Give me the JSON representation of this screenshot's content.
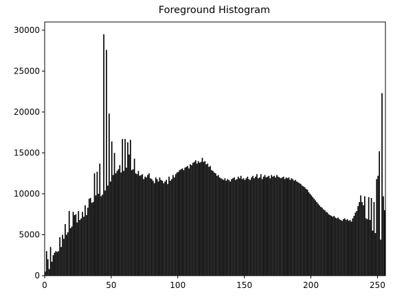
{
  "chart_data": {
    "type": "histogram",
    "title": "Foreground Histogram",
    "color": "#000000",
    "bins": [
      0,
      1,
      2,
      3,
      4,
      5,
      6,
      7,
      8,
      9,
      10,
      11,
      12,
      13,
      14,
      15,
      16,
      17,
      18,
      19,
      20,
      21,
      22,
      23,
      24,
      25,
      26,
      27,
      28,
      29,
      30,
      31,
      32,
      33,
      34,
      35,
      36,
      37,
      38,
      39,
      40,
      41,
      42,
      43,
      44,
      45,
      46,
      47,
      48,
      49,
      50,
      51,
      52,
      53,
      54,
      55,
      56,
      57,
      58,
      59,
      60,
      61,
      62,
      63,
      64,
      65,
      66,
      67,
      68,
      69,
      70,
      71,
      72,
      73,
      74,
      75,
      76,
      77,
      78,
      79,
      80,
      81,
      82,
      83,
      84,
      85,
      86,
      87,
      88,
      89,
      90,
      91,
      92,
      93,
      94,
      95,
      96,
      97,
      98,
      99,
      100,
      101,
      102,
      103,
      104,
      105,
      106,
      107,
      108,
      109,
      110,
      111,
      112,
      113,
      114,
      115,
      116,
      117,
      118,
      119,
      120,
      121,
      122,
      123,
      124,
      125,
      126,
      127,
      128,
      129,
      130,
      131,
      132,
      133,
      134,
      135,
      136,
      137,
      138,
      139,
      140,
      141,
      142,
      143,
      144,
      145,
      146,
      147,
      148,
      149,
      150,
      151,
      152,
      153,
      154,
      155,
      156,
      157,
      158,
      159,
      160,
      161,
      162,
      163,
      164,
      165,
      166,
      167,
      168,
      169,
      170,
      171,
      172,
      173,
      174,
      175,
      176,
      177,
      178,
      179,
      180,
      181,
      182,
      183,
      184,
      185,
      186,
      187,
      188,
      189,
      190,
      191,
      192,
      193,
      194,
      195,
      196,
      197,
      198,
      199,
      200,
      201,
      202,
      203,
      204,
      205,
      206,
      207,
      208,
      209,
      210,
      211,
      212,
      213,
      214,
      215,
      216,
      217,
      218,
      219,
      220,
      221,
      222,
      223,
      224,
      225,
      226,
      227,
      228,
      229,
      230,
      231,
      232,
      233,
      234,
      235,
      236,
      237,
      238,
      239,
      240,
      241,
      242,
      243,
      244,
      245,
      246,
      247,
      248,
      249,
      250,
      251,
      252,
      253,
      254,
      255,
      256
    ],
    "values": [
      500,
      3000,
      2000,
      800,
      3500,
      1700,
      2500,
      2800,
      3000,
      2900,
      3000,
      4700,
      3500,
      5000,
      4500,
      6300,
      5000,
      5300,
      7900,
      5800,
      6000,
      7800,
      7400,
      7500,
      6500,
      7900,
      6800,
      7000,
      7800,
      7200,
      8600,
      7400,
      8300,
      9400,
      9500,
      8900,
      9000,
      12500,
      9800,
      12700,
      10000,
      13700,
      9700,
      9900,
      29500,
      10400,
      27600,
      11000,
      19800,
      11500,
      16400,
      12300,
      15000,
      12500,
      12800,
      13000,
      13500,
      12600,
      16700,
      12800,
      16700,
      13200,
      16300,
      14800,
      16600,
      12900,
      13000,
      14300,
      12500,
      12400,
      12800,
      12200,
      12300,
      12400,
      11800,
      12100,
      12000,
      12300,
      12500,
      11900,
      11800,
      11600,
      11300,
      12000,
      11800,
      11500,
      12000,
      11700,
      11600,
      11300,
      11500,
      11700,
      11200,
      12100,
      11600,
      11800,
      12300,
      12000,
      12400,
      12600,
      12700,
      12900,
      13000,
      13100,
      12900,
      13200,
      13300,
      13400,
      13100,
      13600,
      13500,
      13800,
      13900,
      14100,
      13700,
      14000,
      13800,
      13900,
      14400,
      13900,
      14000,
      13600,
      13700,
      13300,
      13400,
      12900,
      12800,
      12600,
      12500,
      12200,
      12300,
      12000,
      11900,
      11800,
      11700,
      11900,
      11600,
      11800,
      11700,
      11500,
      11800,
      11900,
      12000,
      11700,
      11800,
      12100,
      11900,
      12200,
      11800,
      11900,
      11700,
      11900,
      12100,
      11800,
      11700,
      12000,
      12200,
      11900,
      12100,
      12400,
      11900,
      12000,
      12400,
      11800,
      12100,
      12300,
      12000,
      12100,
      12200,
      11900,
      12300,
      12100,
      12200,
      12000,
      12300,
      12100,
      12000,
      11900,
      12000,
      12100,
      11800,
      12000,
      11900,
      12000,
      11700,
      11900,
      11800,
      11600,
      11700,
      11500,
      11400,
      11300,
      11200,
      11000,
      10900,
      10800,
      10600,
      10500,
      10200,
      10000,
      9800,
      9600,
      9400,
      9200,
      9000,
      8800,
      8600,
      8400,
      8300,
      8100,
      8000,
      7800,
      7700,
      7500,
      7400,
      7300,
      7200,
      7300,
      7100,
      7000,
      7100,
      6900,
      6800,
      6700,
      6900,
      7000,
      6800,
      6900,
      6700,
      6800,
      6600,
      7000,
      7300,
      7700,
      7900,
      8500,
      9000,
      9800,
      9000,
      8600,
      9700,
      7000,
      6900,
      9600,
      6800,
      9500,
      5500,
      9000,
      5200,
      11800,
      12200,
      15200,
      4400,
      22300,
      9700,
      8000
    ],
    "xlim": [
      0,
      256
    ],
    "xticks": [
      0,
      50,
      100,
      150,
      200,
      250
    ],
    "ylim": [
      0,
      31000
    ],
    "yticks": [
      0,
      5000,
      10000,
      15000,
      20000,
      25000,
      30000
    ]
  }
}
